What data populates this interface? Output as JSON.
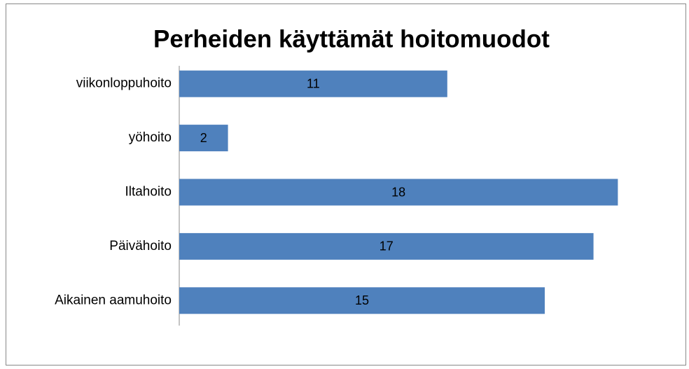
{
  "chart_data": {
    "type": "bar",
    "orientation": "horizontal",
    "title": "Perheiden käyttämät hoitomuodot",
    "categories": [
      "viikonloppuhoito",
      "yöhoito",
      "Iltahoito",
      "Päivähoito",
      "Aikainen aamuhoito"
    ],
    "values": [
      11,
      2,
      18,
      17,
      15
    ],
    "color": "#4f81bd",
    "xlim": [
      0,
      20
    ]
  }
}
